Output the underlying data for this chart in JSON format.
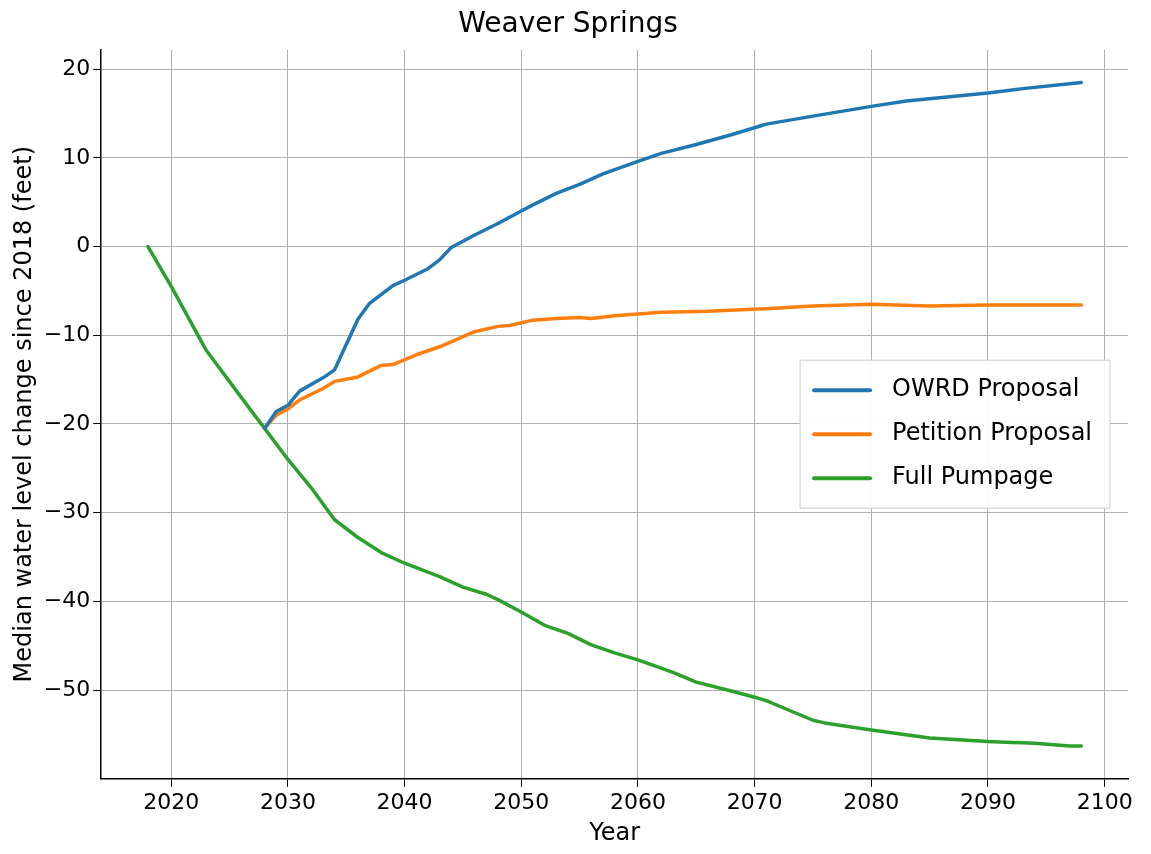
{
  "chart_data": {
    "type": "line",
    "title": "Weaver Springs",
    "xlabel": "Year",
    "ylabel": "Median water level change since 2018 (feet)",
    "xlim": [
      2014,
      2102
    ],
    "ylim": [
      -60,
      22.2
    ],
    "xticks": [
      2020,
      2030,
      2040,
      2050,
      2060,
      2070,
      2080,
      2090,
      2100
    ],
    "yticks": [
      -50,
      -40,
      -30,
      -20,
      -10,
      0,
      10,
      20
    ],
    "grid": true,
    "legend": "right",
    "line_style": "solid",
    "marker": "none",
    "series": [
      {
        "name": "OWRD Proposal",
        "color": "#1f77b4",
        "x": [
          2028,
          2029,
          2030,
          2031,
          2033,
          2034,
          2036,
          2037,
          2039,
          2040,
          2042,
          2043,
          2044,
          2046,
          2048,
          2050,
          2051,
          2053,
          2055,
          2057,
          2060,
          2062,
          2065,
          2068,
          2071,
          2075,
          2080,
          2083,
          2090,
          2093,
          2098
        ],
        "values": [
          -20.5,
          -18.6,
          -17.9,
          -16.3,
          -14.8,
          -13.9,
          -8.2,
          -6.4,
          -4.4,
          -3.8,
          -2.5,
          -1.5,
          -0.1,
          1.3,
          2.6,
          4.0,
          4.7,
          6.0,
          7.0,
          8.2,
          9.6,
          10.5,
          11.5,
          12.6,
          13.8,
          14.7,
          15.8,
          16.4,
          17.3,
          17.8,
          18.5
        ]
      },
      {
        "name": "Petition Proposal",
        "color": "#ff7f0e",
        "x": [
          2028,
          2029,
          2030,
          2031,
          2033,
          2034,
          2036,
          2038,
          2039,
          2041,
          2043,
          2046,
          2048,
          2049,
          2051,
          2053,
          2055,
          2056,
          2058,
          2062,
          2066,
          2071,
          2075,
          2080,
          2085,
          2090,
          2098
        ],
        "values": [
          -20.5,
          -19,
          -18.3,
          -17.3,
          -16,
          -15.2,
          -14.7,
          -13.4,
          -13.3,
          -12.2,
          -11.3,
          -9.6,
          -9,
          -8.9,
          -8.3,
          -8.1,
          -8,
          -8.1,
          -7.8,
          -7.4,
          -7.3,
          -7,
          -6.7,
          -6.5,
          -6.7,
          -6.6,
          -6.6
        ]
      },
      {
        "name": "Full Pumpage",
        "color": "#2ca02c",
        "x": [
          2018,
          2020,
          2023,
          2026,
          2028,
          2030,
          2032,
          2034,
          2036,
          2038,
          2040,
          2043,
          2045,
          2047,
          2048,
          2050,
          2052,
          2054,
          2056,
          2058,
          2060,
          2063,
          2065,
          2068,
          2070,
          2071,
          2073,
          2075,
          2076,
          2080,
          2085,
          2090,
          2094,
          2097,
          2098
        ],
        "values": [
          0,
          -4.5,
          -11.7,
          -17,
          -20.5,
          -24,
          -27.2,
          -30.8,
          -32.8,
          -34.5,
          -35.7,
          -37.2,
          -38.4,
          -39.2,
          -39.8,
          -41.2,
          -42.7,
          -43.6,
          -44.9,
          -45.8,
          -46.6,
          -48,
          -49.1,
          -50.1,
          -50.8,
          -51.2,
          -52.3,
          -53.4,
          -53.7,
          -54.5,
          -55.4,
          -55.8,
          -56,
          -56.3,
          -56.3
        ]
      }
    ]
  }
}
